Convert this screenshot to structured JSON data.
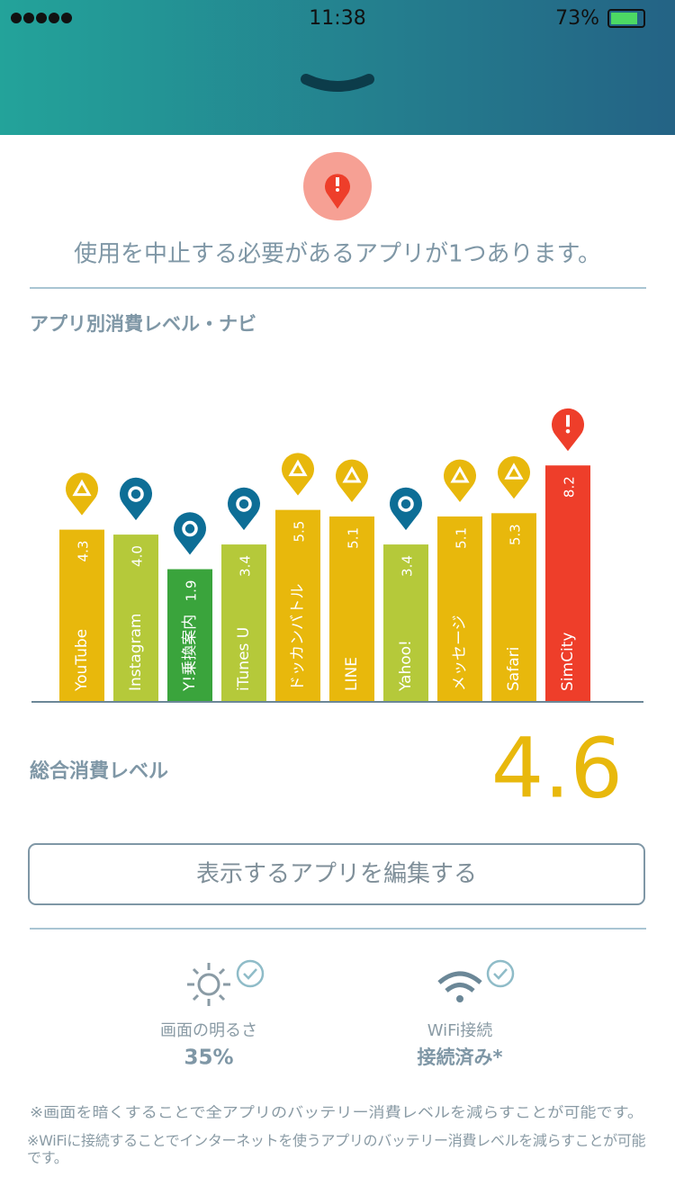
{
  "status_bar": {
    "time": "11:38",
    "battery": "73%"
  },
  "alert": {
    "message": "使用を中止する必要があるアプリが1つあります。"
  },
  "section_title": "アプリ別消費レベル・ナビ",
  "chart_data": {
    "type": "bar",
    "categories": [
      "YouTube",
      "Instagram",
      "Y!乗換案内",
      "iTunes U",
      "ドッカンバトル",
      "LINE",
      "Yahoo!",
      "メッセージ",
      "Safari",
      "SimCity"
    ],
    "values": [
      4.3,
      4.0,
      1.9,
      3.4,
      5.5,
      5.1,
      3.4,
      5.1,
      5.3,
      8.2
    ],
    "value_labels": [
      "4.3",
      "4.0",
      "1.9",
      "3.4",
      "5.5",
      "5.1",
      "3.4",
      "5.1",
      "5.3",
      "8.2"
    ],
    "colors": [
      "#e8b80c",
      "#b5c93a",
      "#3aa43c",
      "#b5c93a",
      "#e8b80c",
      "#e8b80c",
      "#b5c93a",
      "#e8b80c",
      "#e8b80c",
      "#ee3e2a"
    ]
  },
  "total": {
    "label": "総合消費レベル",
    "value": "4.6"
  },
  "edit_button": "表示するアプリを編集する",
  "settings": [
    {
      "label": "画面の明るさ",
      "value": "35%"
    },
    {
      "label": "WiFi接続",
      "value": "接続済み*"
    }
  ],
  "notes": [
    "※画面を暗くすることで全アプリのバッテリー消費レベルを減らすことが可能です。",
    "※WiFiに接続することでインターネットを使うアプリのバッテリー消費レベルを減らすことが可能です。"
  ]
}
